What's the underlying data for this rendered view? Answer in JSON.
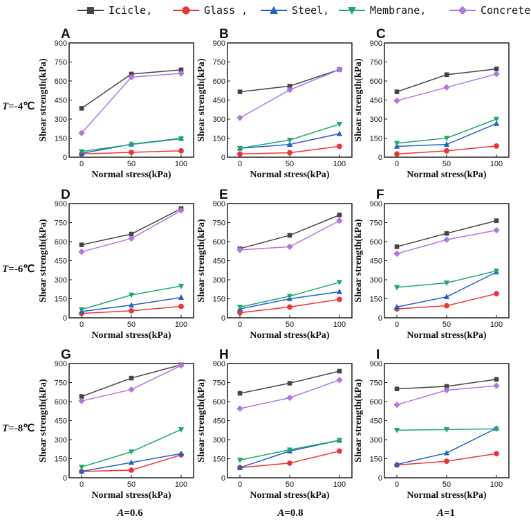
{
  "legend": [
    {
      "name": "Icicle,",
      "color": "#444444",
      "marker": "square"
    },
    {
      "name": "Glass ,",
      "color": "#ee3333",
      "marker": "circle"
    },
    {
      "name": "Steel,",
      "color": "#1f5fcf",
      "marker": "triangle-up"
    },
    {
      "name": "Membrane,",
      "color": "#1aa86b",
      "marker": "triangle-down"
    },
    {
      "name": "Concrete",
      "color": "#b077e0",
      "marker": "diamond"
    }
  ],
  "row_labels": [
    {
      "italic": "T",
      "rest": "=-4℃"
    },
    {
      "italic": "T",
      "rest": "=-6℃"
    },
    {
      "italic": "T",
      "rest": "=-8℃"
    }
  ],
  "col_labels": [
    {
      "italic": "A",
      "rest": "=0.6"
    },
    {
      "italic": "A",
      "rest": "=0.8"
    },
    {
      "italic": "A",
      "rest": "=1"
    }
  ],
  "chart_data": [
    {
      "panel": "A",
      "type": "line",
      "xlabel": "Normal stress(kPa)",
      "ylabel": "Shear strength(kPa)",
      "x": [
        0,
        50,
        100
      ],
      "x_ticks": [
        "0",
        "50",
        "100"
      ],
      "ylim": [
        0,
        900
      ],
      "y_ticks": [
        "0",
        "150",
        "300",
        "450",
        "600",
        "750",
        "900"
      ],
      "series": [
        {
          "name": "Icicle",
          "values": [
            385,
            655,
            688
          ]
        },
        {
          "name": "Glass",
          "values": [
            25,
            38,
            50
          ]
        },
        {
          "name": "Steel",
          "values": [
            30,
            102,
            148
          ]
        },
        {
          "name": "Membrane",
          "values": [
            45,
            100,
            145
          ]
        },
        {
          "name": "Concrete",
          "values": [
            190,
            630,
            660
          ]
        }
      ]
    },
    {
      "panel": "B",
      "type": "line",
      "xlabel": "Normal stress(kPa)",
      "ylabel": "Shear strength(kPa)",
      "x": [
        0,
        50,
        100
      ],
      "x_ticks": [
        "0",
        "50",
        "100"
      ],
      "ylim": [
        0,
        900
      ],
      "y_ticks": [
        "0",
        "150",
        "300",
        "450",
        "600",
        "750",
        "900"
      ],
      "series": [
        {
          "name": "Icicle",
          "values": [
            515,
            560,
            690
          ]
        },
        {
          "name": "Glass",
          "values": [
            25,
            35,
            85
          ]
        },
        {
          "name": "Steel",
          "values": [
            70,
            100,
            185
          ]
        },
        {
          "name": "Membrane",
          "values": [
            70,
            135,
            260
          ]
        },
        {
          "name": "Concrete",
          "values": [
            310,
            530,
            690
          ]
        }
      ]
    },
    {
      "panel": "C",
      "type": "line",
      "xlabel": "Normal stress(kPa)",
      "ylabel": "Shear strength(kPa)",
      "x": [
        0,
        50,
        100
      ],
      "x_ticks": [
        "0",
        "50",
        "100"
      ],
      "ylim": [
        0,
        900
      ],
      "y_ticks": [
        "0",
        "150",
        "300",
        "450",
        "600",
        "750",
        "900"
      ],
      "series": [
        {
          "name": "Icicle",
          "values": [
            515,
            650,
            695
          ]
        },
        {
          "name": "Glass",
          "values": [
            25,
            50,
            88
          ]
        },
        {
          "name": "Steel",
          "values": [
            85,
            100,
            265
          ]
        },
        {
          "name": "Membrane",
          "values": [
            110,
            150,
            300
          ]
        },
        {
          "name": "Concrete",
          "values": [
            445,
            550,
            655
          ]
        }
      ]
    },
    {
      "panel": "D",
      "type": "line",
      "xlabel": "Normal stress(kPa)",
      "ylabel": "Shear strength(kPa)",
      "x": [
        0,
        50,
        100
      ],
      "x_ticks": [
        "0",
        "50",
        "100"
      ],
      "ylim": [
        0,
        900
      ],
      "y_ticks": [
        "0",
        "150",
        "300",
        "450",
        "600",
        "750",
        "900"
      ],
      "series": [
        {
          "name": "Icicle",
          "values": [
            575,
            660,
            860
          ]
        },
        {
          "name": "Glass",
          "values": [
            35,
            55,
            90
          ]
        },
        {
          "name": "Steel",
          "values": [
            50,
            100,
            160
          ]
        },
        {
          "name": "Membrane",
          "values": [
            65,
            180,
            250
          ]
        },
        {
          "name": "Concrete",
          "values": [
            520,
            625,
            845
          ]
        }
      ]
    },
    {
      "panel": "E",
      "type": "line",
      "xlabel": "Normal stress(kPa)",
      "ylabel": "Shear strength(kPa)",
      "x": [
        0,
        50,
        100
      ],
      "x_ticks": [
        "0",
        "50",
        "100"
      ],
      "ylim": [
        0,
        900
      ],
      "y_ticks": [
        "0",
        "150",
        "300",
        "450",
        "600",
        "750",
        "900"
      ],
      "series": [
        {
          "name": "Icicle",
          "values": [
            545,
            650,
            810
          ]
        },
        {
          "name": "Glass",
          "values": [
            40,
            85,
            145
          ]
        },
        {
          "name": "Steel",
          "values": [
            70,
            150,
            205
          ]
        },
        {
          "name": "Membrane",
          "values": [
            85,
            170,
            280
          ]
        },
        {
          "name": "Concrete",
          "values": [
            535,
            560,
            765
          ]
        }
      ]
    },
    {
      "panel": "F",
      "type": "line",
      "xlabel": "Normal stress(kPa)",
      "ylabel": "Shear strength(kPa)",
      "x": [
        0,
        50,
        100
      ],
      "x_ticks": [
        "0",
        "50",
        "100"
      ],
      "ylim": [
        0,
        900
      ],
      "y_ticks": [
        "0",
        "150",
        "300",
        "450",
        "600",
        "750",
        "900"
      ],
      "series": [
        {
          "name": "Icicle",
          "values": [
            560,
            665,
            765
          ]
        },
        {
          "name": "Glass",
          "values": [
            70,
            95,
            190
          ]
        },
        {
          "name": "Steel",
          "values": [
            85,
            165,
            360
          ]
        },
        {
          "name": "Membrane",
          "values": [
            240,
            275,
            370
          ]
        },
        {
          "name": "Concrete",
          "values": [
            505,
            615,
            690
          ]
        }
      ]
    },
    {
      "panel": "G",
      "type": "line",
      "xlabel": "Normal stress(kPa)",
      "ylabel": "Shear strength(kPa)",
      "x": [
        0,
        50,
        100
      ],
      "x_ticks": [
        "0",
        "50",
        "100"
      ],
      "ylim": [
        0,
        900
      ],
      "y_ticks": [
        "0",
        "150",
        "300",
        "450",
        "600",
        "750",
        "900"
      ],
      "series": [
        {
          "name": "Icicle",
          "values": [
            640,
            785,
            890
          ]
        },
        {
          "name": "Glass",
          "values": [
            50,
            60,
            180
          ]
        },
        {
          "name": "Steel",
          "values": [
            50,
            120,
            190
          ]
        },
        {
          "name": "Membrane",
          "values": [
            85,
            205,
            380
          ]
        },
        {
          "name": "Concrete",
          "values": [
            605,
            695,
            885
          ]
        }
      ]
    },
    {
      "panel": "H",
      "type": "line",
      "xlabel": "Normal stress(kPa)",
      "ylabel": "Shear strength(kPa)",
      "x": [
        0,
        50,
        100
      ],
      "x_ticks": [
        "0",
        "50",
        "100"
      ],
      "ylim": [
        0,
        900
      ],
      "y_ticks": [
        "0",
        "150",
        "300",
        "450",
        "600",
        "750",
        "900"
      ],
      "series": [
        {
          "name": "Icicle",
          "values": [
            665,
            745,
            840
          ]
        },
        {
          "name": "Glass",
          "values": [
            80,
            115,
            210
          ]
        },
        {
          "name": "Steel",
          "values": [
            80,
            210,
            295
          ]
        },
        {
          "name": "Membrane",
          "values": [
            140,
            220,
            295
          ]
        },
        {
          "name": "Concrete",
          "values": [
            545,
            630,
            770
          ]
        }
      ]
    },
    {
      "panel": "I",
      "type": "line",
      "xlabel": "Normal stress(kPa)",
      "ylabel": "Shear strength(kPa)",
      "x": [
        0,
        50,
        100
      ],
      "x_ticks": [
        "0",
        "50",
        "100"
      ],
      "ylim": [
        0,
        900
      ],
      "y_ticks": [
        "0",
        "150",
        "300",
        "450",
        "600",
        "750",
        "900"
      ],
      "series": [
        {
          "name": "Icicle",
          "values": [
            700,
            720,
            775
          ]
        },
        {
          "name": "Glass",
          "values": [
            100,
            130,
            190
          ]
        },
        {
          "name": "Steel",
          "values": [
            105,
            195,
            390
          ]
        },
        {
          "name": "Membrane",
          "values": [
            375,
            380,
            385
          ]
        },
        {
          "name": "Concrete",
          "values": [
            575,
            690,
            725
          ]
        }
      ]
    }
  ]
}
